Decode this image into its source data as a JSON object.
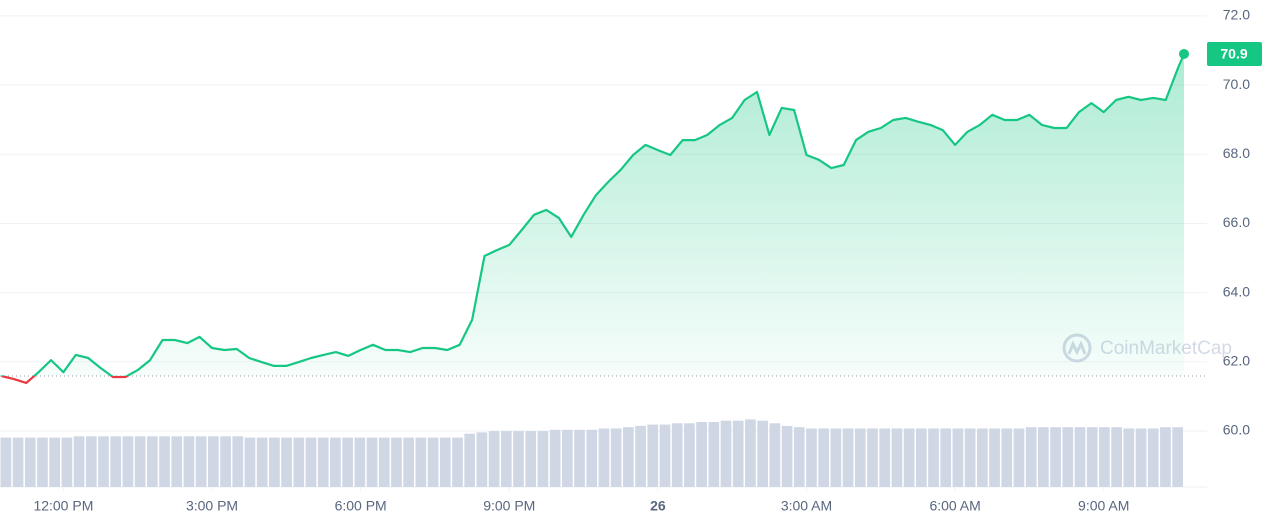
{
  "chart_data": {
    "type": "line",
    "x": [
      10.75,
      11,
      11.25,
      11.5,
      11.75,
      12,
      12.25,
      12.5,
      12.75,
      13,
      13.25,
      13.5,
      13.75,
      14,
      14.25,
      14.5,
      14.75,
      15,
      15.25,
      15.5,
      15.75,
      16,
      16.25,
      16.5,
      16.75,
      17,
      17.25,
      17.5,
      17.75,
      18,
      18.25,
      18.5,
      18.75,
      19,
      19.25,
      19.5,
      19.75,
      20,
      20.25,
      20.5,
      20.75,
      21,
      21.25,
      21.5,
      21.75,
      22,
      22.25,
      22.5,
      22.75,
      23,
      23.25,
      23.5,
      23.75,
      24,
      24.25,
      24.5,
      24.75,
      25,
      25.25,
      25.5,
      25.75,
      26,
      26.25,
      26.5,
      26.75,
      27,
      27.25,
      27.5,
      27.75,
      28,
      28.25,
      28.5,
      28.75,
      29,
      29.25,
      29.5,
      29.75,
      30,
      30.25,
      30.5,
      30.75,
      31,
      31.25,
      31.5,
      31.75,
      32,
      32.25,
      32.5,
      32.75,
      33,
      33.25,
      33.5,
      33.75,
      34,
      34.25,
      34.5,
      34.62
    ],
    "series": [
      {
        "color": "#16c784",
        "below_color": "#ea3943",
        "values": [
          61.59,
          61.5,
          61.39,
          61.7,
          62.05,
          61.7,
          62.2,
          62.11,
          61.82,
          61.56,
          61.56,
          61.76,
          62.05,
          62.63,
          62.63,
          62.54,
          62.72,
          62.4,
          62.34,
          62.37,
          62.11,
          61.99,
          61.88,
          61.88,
          61.99,
          62.11,
          62.2,
          62.28,
          62.17,
          62.34,
          62.49,
          62.34,
          62.34,
          62.28,
          62.4,
          62.4,
          62.34,
          62.49,
          63.21,
          65.06,
          65.23,
          65.38,
          65.81,
          66.25,
          66.39,
          66.16,
          65.61,
          66.25,
          66.82,
          67.2,
          67.55,
          67.98,
          68.27,
          68.12,
          67.98,
          68.41,
          68.41,
          68.56,
          68.85,
          69.05,
          69.57,
          69.8,
          68.56,
          69.34,
          69.28,
          67.98,
          67.84,
          67.6,
          67.69,
          68.41,
          68.65,
          68.76,
          68.99,
          69.05,
          68.94,
          68.85,
          68.7,
          68.27,
          68.65,
          68.85,
          69.14,
          68.99,
          68.99,
          69.14,
          68.85,
          68.76,
          68.76,
          69.22,
          69.48,
          69.22,
          69.57,
          69.66,
          69.57,
          69.63,
          69.57,
          70.5,
          70.9
        ]
      }
    ],
    "volume": {
      "color": "#cfd6e4",
      "lim": [
        0,
        100
      ],
      "values": [
        38,
        38,
        38,
        38,
        38,
        38,
        39,
        39,
        39,
        39,
        39,
        39,
        39,
        39,
        39,
        39,
        39,
        39,
        39,
        39,
        38,
        38,
        38,
        38,
        38,
        38,
        38,
        38,
        38,
        38,
        38,
        38,
        38,
        38,
        38,
        38,
        38,
        38,
        41,
        42,
        43,
        43,
        43,
        43,
        43,
        44,
        44,
        44,
        44,
        45,
        45,
        46,
        47,
        48,
        48,
        49,
        49,
        50,
        50,
        51,
        51,
        52,
        51,
        49,
        47,
        46,
        45,
        45,
        45,
        45,
        45,
        45,
        45,
        45,
        45,
        45,
        45,
        45,
        45,
        45,
        45,
        45,
        45,
        45,
        46,
        46,
        46,
        46,
        46,
        46,
        46,
        46,
        45,
        45,
        45,
        46,
        46
      ]
    },
    "baseline": 61.59,
    "current_price": 70.9,
    "watermark": "CoinMarketCap",
    "xlim": [
      10.72,
      34.62
    ],
    "xticks": [
      {
        "value": 12,
        "label": "12:00 PM"
      },
      {
        "value": 15,
        "label": "3:00 PM"
      },
      {
        "value": 18,
        "label": "6:00 PM"
      },
      {
        "value": 21,
        "label": "9:00 PM"
      },
      {
        "value": 24,
        "label": "26"
      },
      {
        "value": 27,
        "label": "3:00 AM"
      },
      {
        "value": 30,
        "label": "6:00 AM"
      },
      {
        "value": 33,
        "label": "9:00 AM"
      }
    ],
    "ylim": [
      58.38,
      72.46
    ],
    "yticks": [
      {
        "value": 60,
        "label": "60.0"
      },
      {
        "value": 62,
        "label": "62.0"
      },
      {
        "value": 64,
        "label": "64.0"
      },
      {
        "value": 66,
        "label": "66.0"
      },
      {
        "value": 68,
        "label": "68.0"
      },
      {
        "value": 70,
        "label": "70.0"
      },
      {
        "value": 72,
        "label": "72.0"
      }
    ],
    "grid": true
  }
}
